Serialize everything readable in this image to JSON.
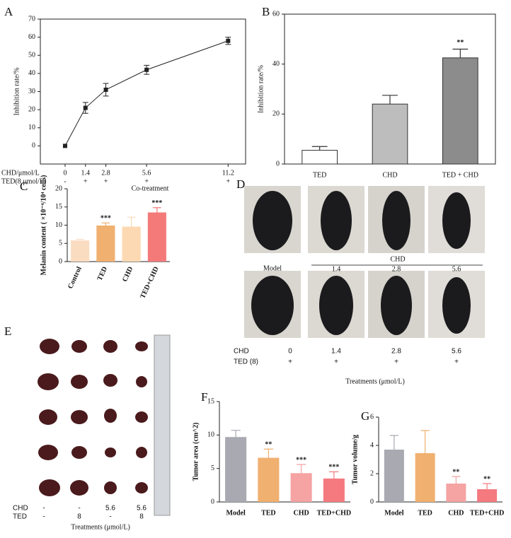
{
  "chart_data": [
    {
      "type": "line",
      "panel": "A",
      "ylabel": "Inhibition rate/%",
      "x_row_label": "CHD/μmol/L",
      "second_row_label": "TED(8 μmol/L)",
      "second_row": [
        "-",
        "+",
        "+",
        "+",
        "+"
      ],
      "xlabel": "Co-treatment",
      "x": [
        0,
        1.4,
        2.8,
        5.6,
        11.2
      ],
      "values": [
        0,
        21,
        31,
        42,
        58
      ],
      "errors": [
        0,
        3,
        3.5,
        2.5,
        2
      ],
      "color": "#222222",
      "xlim": [
        -1.7,
        12.4
      ],
      "xticks": [
        0,
        1.4,
        2.8,
        5.6,
        11.2
      ],
      "ylim": [
        -10,
        70
      ],
      "yticks": [
        0,
        10,
        20,
        30,
        40,
        50,
        60,
        70
      ]
    },
    {
      "type": "bar",
      "panel": "B",
      "ylabel": "Inhibition rate/%",
      "categories": [
        "TED",
        "CHD",
        "TED + CHD"
      ],
      "values": [
        5.5,
        24,
        42.5
      ],
      "errors": [
        1.5,
        3.5,
        3.5
      ],
      "colors": [
        "#ffffff",
        "#bdbdbd",
        "#8c8c8c"
      ],
      "edgecolor": "#333333",
      "ylim": [
        0,
        60
      ],
      "yticks": [
        0,
        20,
        40,
        60
      ],
      "annotations": [
        {
          "category": "TED + CHD",
          "text": "**"
        }
      ]
    },
    {
      "type": "bar",
      "panel": "C",
      "ylabel": "Melanin content ( ×10⁻⁴/10⁴ cells)",
      "categories": [
        "Control",
        "TED",
        "CHD",
        "TED+CHD"
      ],
      "values": [
        5.8,
        9.9,
        9.6,
        13.5
      ],
      "errors": [
        0.3,
        0.7,
        2.6,
        1.3
      ],
      "colors": [
        "#fadcc0",
        "#f0b070",
        "#fcd9b2",
        "#f47a7a"
      ],
      "ylim": [
        0,
        20
      ],
      "yticks": [
        0,
        5,
        10,
        15,
        20
      ],
      "annotations": [
        {
          "category": "TED",
          "text": "***"
        },
        {
          "category": "TED+CHD",
          "text": "***"
        }
      ]
    },
    {
      "type": "bar",
      "panel": "F",
      "ylabel": "Tumor area (cm^2)",
      "categories": [
        "Model",
        "TED",
        "CHD",
        "TED+CHD"
      ],
      "values": [
        9.7,
        6.6,
        4.3,
        3.5
      ],
      "errors": [
        1,
        1.3,
        1.3,
        1
      ],
      "colors": [
        "#a9a9b2",
        "#f0b070",
        "#f5a3a3",
        "#f47a80"
      ],
      "ylim": [
        0,
        15
      ],
      "yticks": [
        0,
        5,
        10,
        15
      ],
      "annotations": [
        {
          "category": "TED",
          "text": "**"
        },
        {
          "category": "CHD",
          "text": "***"
        },
        {
          "category": "TED+CHD",
          "text": "***"
        }
      ]
    },
    {
      "type": "bar",
      "panel": "G",
      "ylabel": "Tumor volume/g",
      "categories": [
        "Model",
        "TED",
        "CHD",
        "TED+CHD"
      ],
      "values": [
        3.7,
        3.45,
        1.3,
        0.9
      ],
      "errors": [
        1,
        1.6,
        0.5,
        0.4
      ],
      "colors": [
        "#a9a9b2",
        "#f0b070",
        "#f5a3a3",
        "#f47a80"
      ],
      "ylim": [
        0,
        6
      ],
      "yticks": [
        0,
        2,
        4,
        6
      ],
      "annotations": [
        {
          "category": "CHD",
          "text": "**"
        },
        {
          "category": "TED+CHD",
          "text": "**"
        }
      ]
    }
  ],
  "panels": [
    {
      "label": "D",
      "model": "Model",
      "group": "CHD",
      "doses": [
        "1.4",
        "2.8",
        "5.6"
      ],
      "rows": [
        {
          "name": "CHD",
          "values": [
            "0",
            "1.4",
            "2.8",
            "5.6"
          ]
        },
        {
          "name": "TED (8)",
          "values": [
            "+",
            "+",
            "+",
            "+"
          ]
        }
      ],
      "xlabel": "Treatments  (μmol/L)"
    },
    {
      "label": "E",
      "rows": [
        {
          "name": "CHD",
          "values": [
            "-",
            "-",
            "5.6",
            "5.6"
          ]
        },
        {
          "name": "TED",
          "values": [
            "-",
            "8",
            "-",
            "8"
          ]
        }
      ],
      "xlabel": "Treatments  (μmol/L)"
    }
  ]
}
